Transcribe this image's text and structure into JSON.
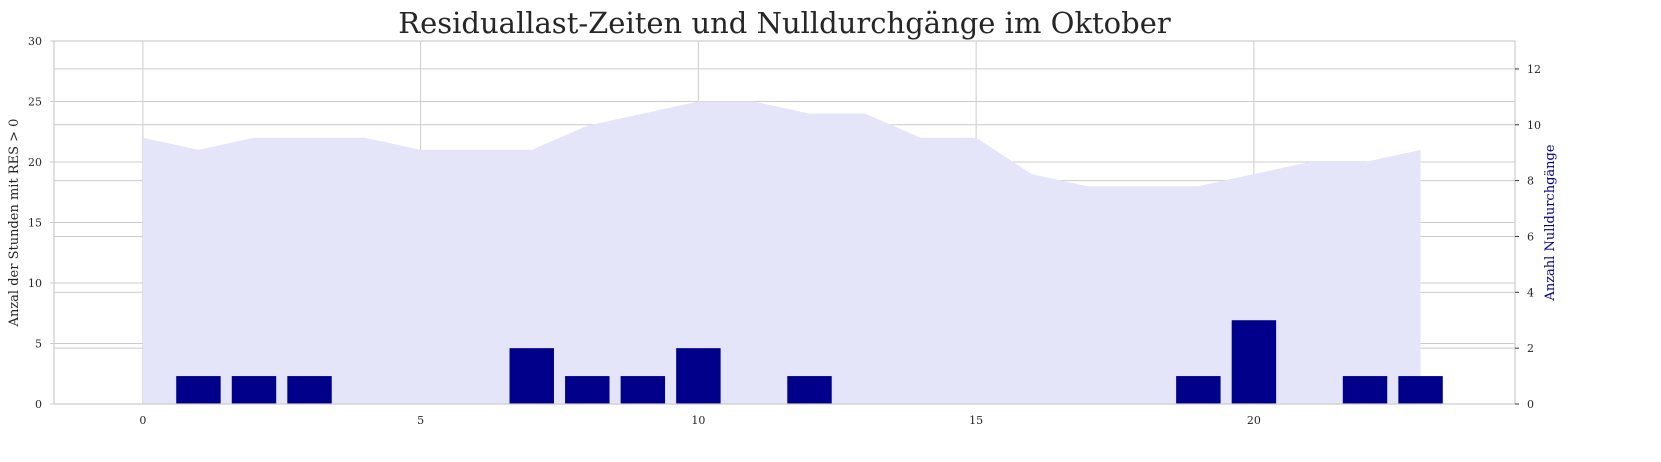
{
  "chart_data": {
    "type": "bar",
    "title": "Residuallast-Zeiten und Nulldurchgänge im Oktober",
    "x": [
      0,
      1,
      2,
      3,
      4,
      5,
      6,
      7,
      8,
      9,
      10,
      11,
      12,
      13,
      14,
      15,
      16,
      17,
      18,
      19,
      20,
      21,
      22,
      23
    ],
    "xticks": [
      0,
      5,
      10,
      15,
      20
    ],
    "xlim": [
      -1.6,
      24.7
    ],
    "left_axis": {
      "label": "Anzal der Stunden mit RES > 0",
      "ylim": [
        0,
        30
      ],
      "ticks": [
        0,
        5,
        10,
        15,
        20,
        25,
        30
      ]
    },
    "right_axis": {
      "label": "Anzahl Nulldurchgänge",
      "ylim": [
        0,
        13
      ],
      "ticks": [
        0,
        2,
        4,
        6,
        8,
        10,
        12
      ]
    },
    "series": [
      {
        "kind": "area",
        "axis": "left",
        "color": "#e4e5f8",
        "values": [
          22,
          21,
          22,
          22,
          22,
          21,
          21,
          21,
          23,
          24,
          25,
          25,
          24,
          24,
          22,
          22,
          19,
          18,
          18,
          18,
          19,
          20,
          20,
          21
        ]
      },
      {
        "kind": "bar",
        "axis": "right",
        "color": "#00008b",
        "values": [
          0,
          1,
          1,
          1,
          0,
          0,
          0,
          2,
          1,
          1,
          2,
          0,
          1,
          0,
          0,
          0,
          0,
          0,
          0,
          1,
          3,
          0,
          1,
          1
        ]
      }
    ],
    "grid": true,
    "legend": "none"
  }
}
